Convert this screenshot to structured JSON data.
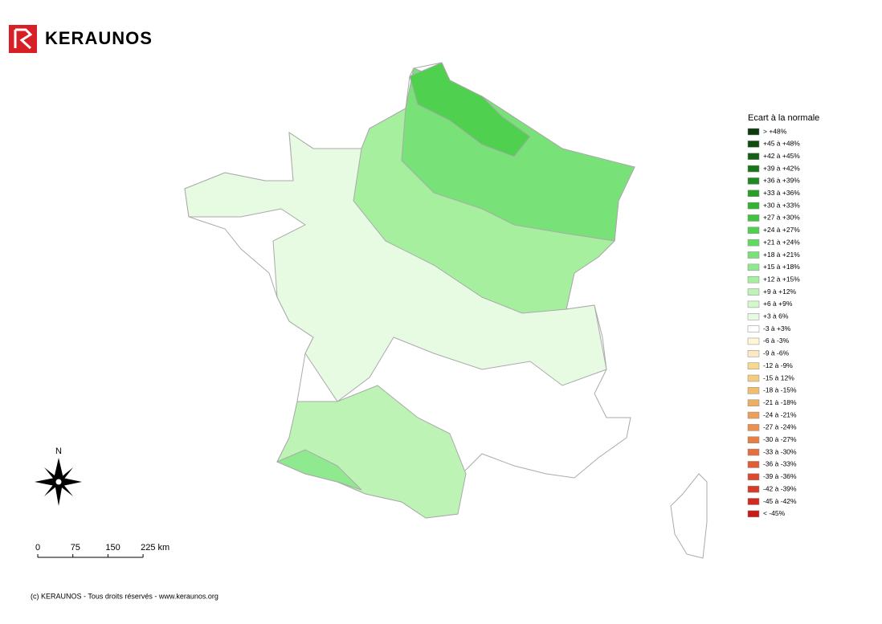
{
  "header": {
    "logo": "KERAUNOS"
  },
  "legend": {
    "title": "Ecart à la normale",
    "items": [
      {
        "label": "> +48%",
        "color": "#0b3a0b"
      },
      {
        "label": "+45 à +48%",
        "color": "#0f4d0f"
      },
      {
        "label": "+42 à +45%",
        "color": "#146014"
      },
      {
        "label": "+39 à +42%",
        "color": "#1a741a"
      },
      {
        "label": "+36 à +39%",
        "color": "#208a20"
      },
      {
        "label": "+33 à +36%",
        "color": "#28a028"
      },
      {
        "label": "+30 à +33%",
        "color": "#32b332"
      },
      {
        "label": "+27 à +30%",
        "color": "#3fc43f"
      },
      {
        "label": "+24 à +27%",
        "color": "#4fd14f"
      },
      {
        "label": "+21 à +24%",
        "color": "#62da62"
      },
      {
        "label": "+18 à +21%",
        "color": "#78e278"
      },
      {
        "label": "+15 à +18%",
        "color": "#8fe98f"
      },
      {
        "label": "+12 à +15%",
        "color": "#a6ef9f"
      },
      {
        "label": "+9 à +12%",
        "color": "#bdf4b5"
      },
      {
        "label": "+6 à +9%",
        "color": "#d2f8cb"
      },
      {
        "label": "+3 à 6%",
        "color": "#e6fbe2"
      },
      {
        "label": "-3 à +3%",
        "color": "#ffffff"
      },
      {
        "label": "-6 à -3%",
        "color": "#fff6d5"
      },
      {
        "label": "-9 à -6%",
        "color": "#fbe9c3"
      },
      {
        "label": "-12 à -9%",
        "color": "#f6d88e"
      },
      {
        "label": "-15 à 12%",
        "color": "#f3cc80"
      },
      {
        "label": "-18 à -15%",
        "color": "#f0bd6e"
      },
      {
        "label": "-21 à -18%",
        "color": "#eeae62"
      },
      {
        "label": "-24 à -21%",
        "color": "#ec9f58"
      },
      {
        "label": "-27 à -24%",
        "color": "#ea9050"
      },
      {
        "label": "-30 à -27%",
        "color": "#e67f46"
      },
      {
        "label": "-33 à -30%",
        "color": "#e36e3e"
      },
      {
        "label": "-36 à -33%",
        "color": "#e05c35"
      },
      {
        "label": "-39 à -36%",
        "color": "#dc4a2e"
      },
      {
        "label": "-42 à -39%",
        "color": "#d73a26"
      },
      {
        "label": "-45 à -42%",
        "color": "#d22a1f"
      },
      {
        "label": "< -45%",
        "color": "#c81a16"
      }
    ]
  },
  "compass": {
    "label": "N"
  },
  "scale": {
    "labels": [
      "0",
      "75",
      "150",
      "225 km"
    ]
  },
  "footer": {
    "text": "(c) KERAUNOS - Tous droits réservés - www.keraunos.org"
  }
}
